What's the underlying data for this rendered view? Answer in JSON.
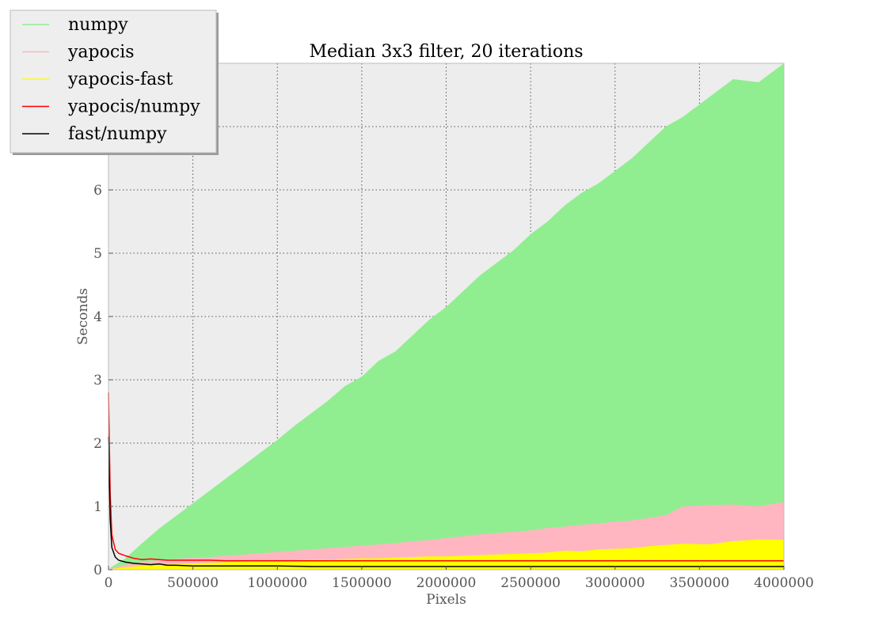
{
  "chart_data": {
    "type": "area",
    "title": "Median 3x3 filter, 20 iterations",
    "xlabel": "Pixels",
    "ylabel": "Seconds",
    "xlim": [
      0,
      4000000
    ],
    "ylim": [
      0,
      8
    ],
    "x_ticks": [
      0,
      500000,
      1000000,
      1500000,
      2000000,
      2500000,
      3000000,
      3500000,
      4000000
    ],
    "x_tick_labels": [
      "0",
      "500000",
      "1000000",
      "1500000",
      "2000000",
      "2500000",
      "3000000",
      "3500000",
      "4000000"
    ],
    "y_ticks": [
      0,
      1,
      2,
      3,
      4,
      5,
      6,
      7,
      8
    ],
    "y_tick_labels": [
      "0",
      "1",
      "2",
      "3",
      "4",
      "5",
      "6",
      "7",
      ""
    ],
    "grid": true,
    "grid_style": "dotted",
    "background_color": "#ededed",
    "legend_position": "top-left",
    "series": [
      {
        "name": "numpy",
        "kind": "area",
        "color": "#90ee90",
        "x": [
          10000,
          100000,
          200000,
          300000,
          400000,
          500000,
          600000,
          700000,
          800000,
          900000,
          1000000,
          1100000,
          1200000,
          1300000,
          1400000,
          1500000,
          1600000,
          1700000,
          1800000,
          1900000,
          2000000,
          2100000,
          2200000,
          2300000,
          2400000,
          2500000,
          2600000,
          2700000,
          2800000,
          2900000,
          3000000,
          3100000,
          3200000,
          3300000,
          3400000,
          3550000,
          3700000,
          3850000,
          4000000
        ],
        "values": [
          0.03,
          0.18,
          0.42,
          0.65,
          0.85,
          1.05,
          1.25,
          1.45,
          1.65,
          1.85,
          2.05,
          2.27,
          2.47,
          2.67,
          2.9,
          3.05,
          3.3,
          3.45,
          3.7,
          3.95,
          4.15,
          4.4,
          4.65,
          4.85,
          5.05,
          5.3,
          5.5,
          5.75,
          5.95,
          6.1,
          6.3,
          6.5,
          6.75,
          7.0,
          7.15,
          7.45,
          7.75,
          7.7,
          8.0
        ]
      },
      {
        "name": "yapocis",
        "kind": "area",
        "color": "#ffb6c1",
        "x": [
          10000,
          100000,
          200000,
          300000,
          400000,
          500000,
          600000,
          700000,
          800000,
          900000,
          1000000,
          1100000,
          1200000,
          1300000,
          1400000,
          1500000,
          1600000,
          1700000,
          1800000,
          1900000,
          2000000,
          2100000,
          2200000,
          2300000,
          2400000,
          2500000,
          2600000,
          2700000,
          2800000,
          2900000,
          3000000,
          3100000,
          3200000,
          3300000,
          3400000,
          3550000,
          3700000,
          3850000,
          4000000
        ],
        "values": [
          0.02,
          0.08,
          0.12,
          0.15,
          0.17,
          0.19,
          0.2,
          0.22,
          0.24,
          0.26,
          0.28,
          0.3,
          0.32,
          0.34,
          0.36,
          0.38,
          0.4,
          0.42,
          0.45,
          0.47,
          0.5,
          0.53,
          0.56,
          0.58,
          0.6,
          0.62,
          0.66,
          0.68,
          0.71,
          0.73,
          0.76,
          0.78,
          0.82,
          0.86,
          1.0,
          1.02,
          1.03,
          1.0,
          1.07
        ]
      },
      {
        "name": "yapocis-fast",
        "kind": "area",
        "color": "#ffff00",
        "x": [
          10000,
          100000,
          200000,
          300000,
          400000,
          500000,
          600000,
          700000,
          800000,
          900000,
          1000000,
          1100000,
          1200000,
          1300000,
          1400000,
          1500000,
          1600000,
          1700000,
          1800000,
          1900000,
          2000000,
          2100000,
          2200000,
          2300000,
          2400000,
          2500000,
          2600000,
          2700000,
          2800000,
          2900000,
          3000000,
          3100000,
          3200000,
          3300000,
          3400000,
          3550000,
          3700000,
          3850000,
          4000000
        ],
        "values": [
          0.01,
          0.04,
          0.06,
          0.08,
          0.09,
          0.1,
          0.11,
          0.12,
          0.13,
          0.14,
          0.14,
          0.15,
          0.16,
          0.16,
          0.17,
          0.18,
          0.18,
          0.19,
          0.2,
          0.21,
          0.21,
          0.22,
          0.23,
          0.24,
          0.25,
          0.26,
          0.27,
          0.3,
          0.29,
          0.32,
          0.33,
          0.34,
          0.37,
          0.39,
          0.41,
          0.4,
          0.45,
          0.48,
          0.47
        ]
      },
      {
        "name": "yapocis/numpy",
        "kind": "line",
        "color": "#ff0000",
        "x": [
          0,
          10000,
          20000,
          40000,
          60000,
          100000,
          150000,
          200000,
          250000,
          300000,
          350000,
          400000,
          500000,
          600000,
          700000,
          800000,
          1000000,
          1200000,
          1500000,
          1800000,
          2000000,
          2500000,
          3000000,
          3500000,
          4000000
        ],
        "values": [
          2.8,
          1.2,
          0.55,
          0.32,
          0.26,
          0.22,
          0.18,
          0.16,
          0.17,
          0.16,
          0.15,
          0.15,
          0.15,
          0.15,
          0.14,
          0.14,
          0.14,
          0.14,
          0.14,
          0.14,
          0.14,
          0.14,
          0.14,
          0.14,
          0.14
        ]
      },
      {
        "name": "fast/numpy",
        "kind": "line",
        "color": "#000000",
        "x": [
          0,
          10000,
          20000,
          40000,
          60000,
          100000,
          150000,
          200000,
          250000,
          300000,
          350000,
          400000,
          500000,
          600000,
          700000,
          800000,
          1000000,
          1200000,
          1500000,
          1800000,
          2000000,
          2500000,
          3000000,
          3500000,
          4000000
        ],
        "values": [
          2.1,
          0.8,
          0.35,
          0.2,
          0.15,
          0.12,
          0.1,
          0.09,
          0.08,
          0.09,
          0.07,
          0.07,
          0.06,
          0.06,
          0.06,
          0.06,
          0.06,
          0.05,
          0.05,
          0.05,
          0.05,
          0.05,
          0.05,
          0.05,
          0.05
        ]
      }
    ]
  }
}
